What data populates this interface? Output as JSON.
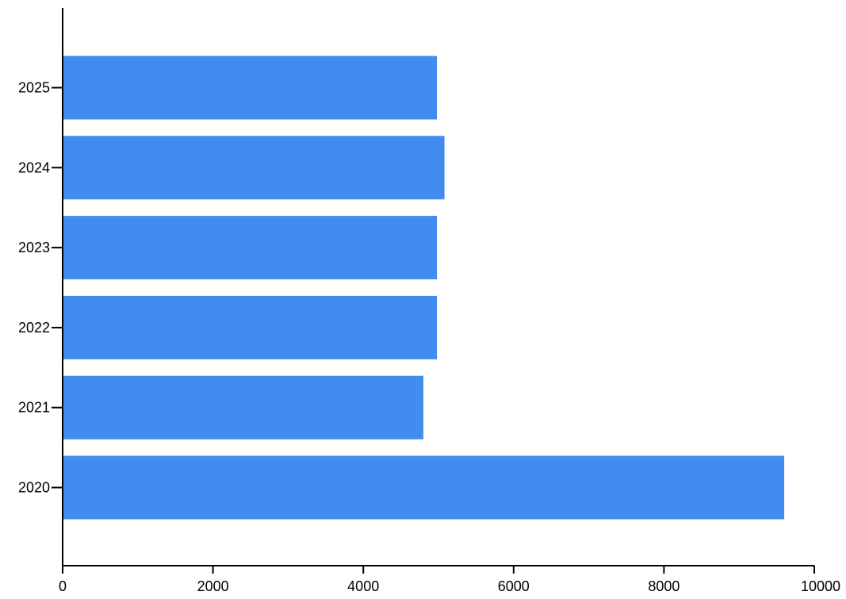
{
  "chart_data": {
    "type": "bar",
    "orientation": "horizontal",
    "categories": [
      "2025",
      "2024",
      "2023",
      "2022",
      "2021",
      "2020"
    ],
    "values": [
      4980,
      5080,
      4980,
      4980,
      4800,
      9600
    ],
    "xlim": [
      0,
      10000
    ],
    "x_ticks": [
      0,
      2000,
      4000,
      6000,
      8000,
      10000
    ],
    "x_tick_labels": [
      "0",
      "2000",
      "4000",
      "6000",
      "8000",
      "10000"
    ],
    "bar_color": "#428BEF",
    "grid": false,
    "legend": "none"
  }
}
